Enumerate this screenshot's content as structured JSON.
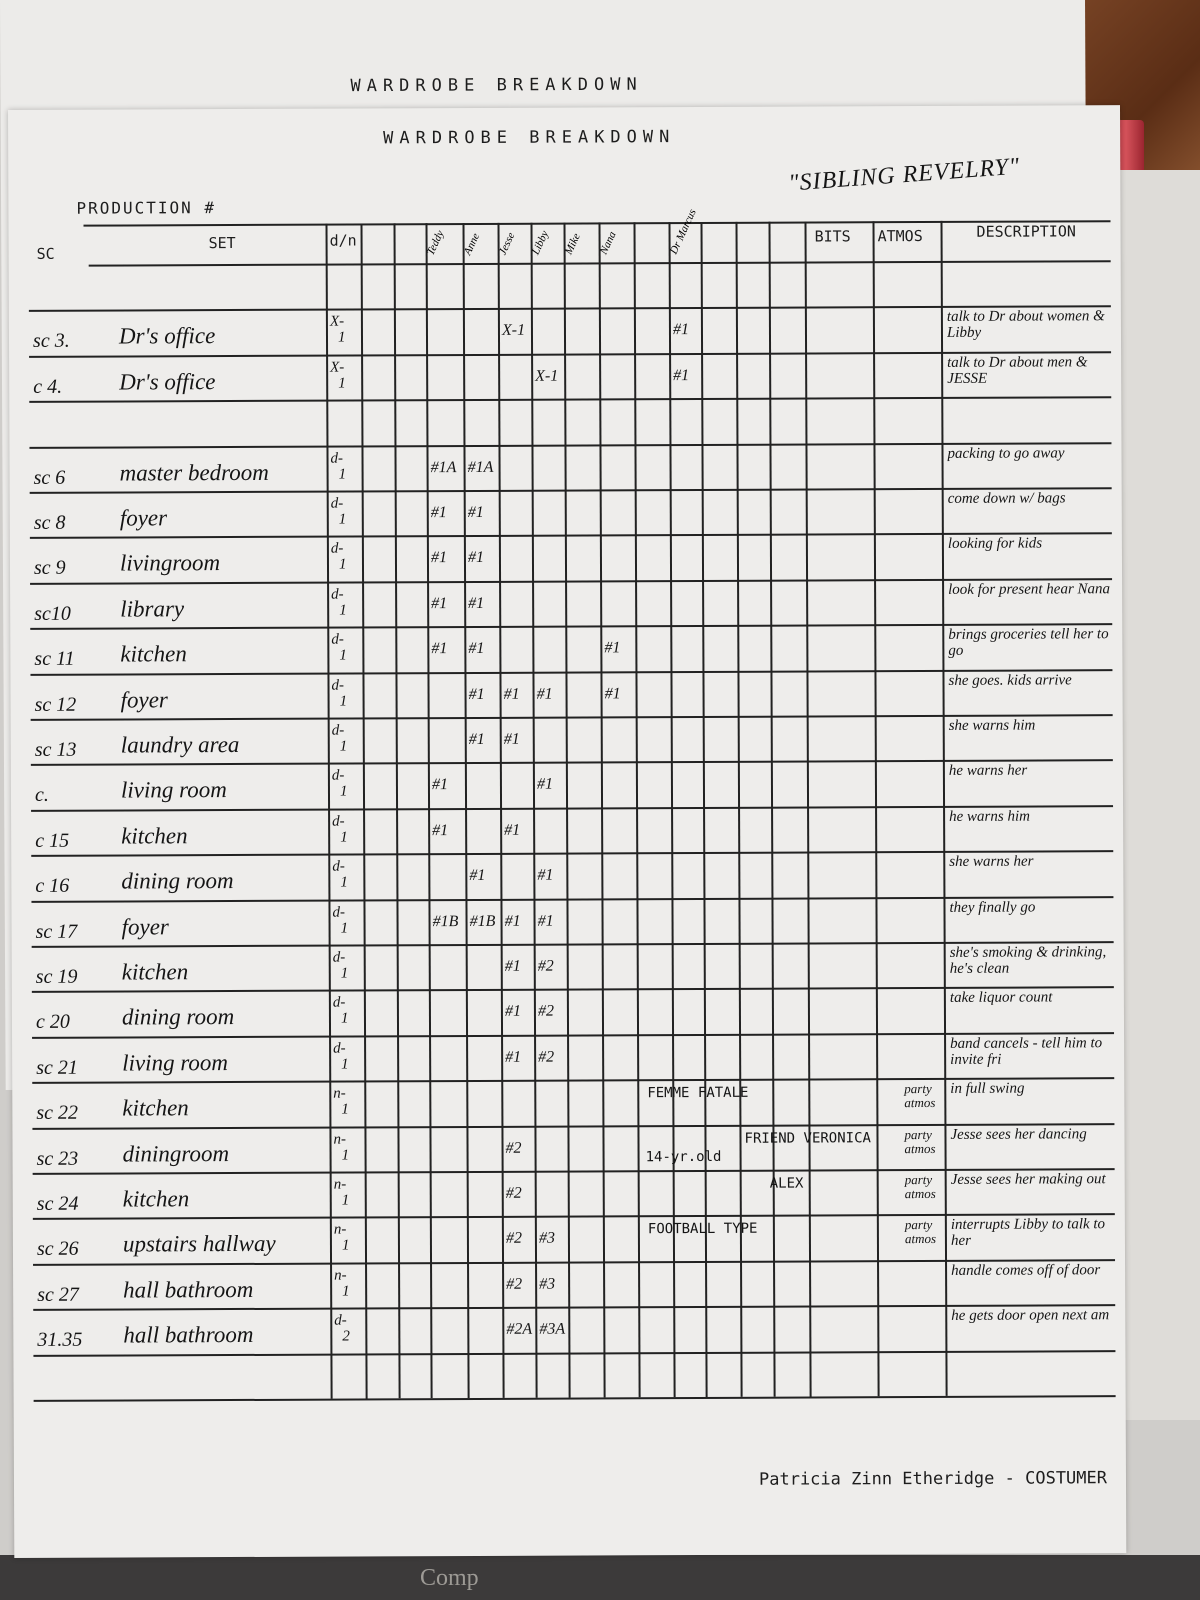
{
  "back_title": "WARDROBE BREAKDOWN",
  "title": "WARDROBE BREAKDOWN",
  "production_label": "PRODUCTION #",
  "production_name": "\"SIBLING REVELRY\"",
  "headers": {
    "sc": "SC",
    "set": "SET",
    "dn": "d/n",
    "bits": "BITS",
    "atmos": "ATMOS",
    "description": "DESCRIPTION"
  },
  "characters": [
    "",
    "Teddy",
    "Anne",
    "Jesse",
    "Libby",
    "Mike",
    "Nana",
    "",
    "Dr Marcus",
    "",
    "",
    "",
    ""
  ],
  "rows": [
    {},
    {
      "sc": "sc 3.",
      "set": "Dr's office",
      "dn": "X-1",
      "marks": {
        "3": "X-1",
        "8": "#1"
      },
      "description": "talk to Dr about women & Libby"
    },
    {
      "sc": "c 4.",
      "set": "Dr's office",
      "dn": "X-1",
      "marks": {
        "4": "X-1",
        "8": "#1"
      },
      "description": "talk to Dr about men & JESSE"
    },
    {},
    {
      "sc": "sc 6",
      "set": "master bedroom",
      "dn": "d-1",
      "marks": {
        "1": "#1A",
        "2": "#1A"
      },
      "description": "packing to go away"
    },
    {
      "sc": "sc 8",
      "set": "foyer",
      "dn": "d-1",
      "marks": {
        "1": "#1",
        "2": "#1"
      },
      "description": "come down w/ bags"
    },
    {
      "sc": "sc 9",
      "set": "livingroom",
      "dn": "d-1",
      "marks": {
        "1": "#1",
        "2": "#1"
      },
      "description": "looking for kids"
    },
    {
      "sc": "sc10",
      "set": "library",
      "dn": "d-1",
      "marks": {
        "1": "#1",
        "2": "#1"
      },
      "description": "look for present hear Nana"
    },
    {
      "sc": "sc 11",
      "set": "kitchen",
      "dn": "d-1",
      "marks": {
        "1": "#1",
        "2": "#1",
        "6": "#1"
      },
      "description": "brings groceries tell her to go"
    },
    {
      "sc": "sc 12",
      "set": "foyer",
      "dn": "d-1",
      "marks": {
        "2": "#1",
        "3": "#1",
        "4": "#1",
        "6": "#1"
      },
      "description": "she goes. kids arrive"
    },
    {
      "sc": "sc 13",
      "set": "laundry area",
      "dn": "d-1",
      "marks": {
        "2": "#1",
        "3": "#1"
      },
      "description": "she warns him"
    },
    {
      "sc": "c.",
      "set": "living room",
      "dn": "d-1",
      "marks": {
        "1": "#1",
        "4": "#1"
      },
      "description": "he warns her"
    },
    {
      "sc": "c 15",
      "set": "kitchen",
      "dn": "d-1",
      "marks": {
        "1": "#1",
        "3": "#1"
      },
      "description": "he warns him"
    },
    {
      "sc": "c 16",
      "set": "dining room",
      "dn": "d-1",
      "marks": {
        "2": "#1",
        "4": "#1"
      },
      "description": "she warns her"
    },
    {
      "sc": "sc 17",
      "set": "foyer",
      "dn": "d-1",
      "marks": {
        "1": "#1B",
        "2": "#1B",
        "3": "#1",
        "4": "#1"
      },
      "description": "they finally go"
    },
    {
      "sc": "sc 19",
      "set": "kitchen",
      "dn": "d-1",
      "marks": {
        "3": "#1",
        "4": "#2"
      },
      "description": "she's smoking & drinking, he's clean"
    },
    {
      "sc": "c 20",
      "set": "dining room",
      "dn": "d-1",
      "marks": {
        "3": "#1",
        "4": "#2"
      },
      "description": "take liquor count"
    },
    {
      "sc": "sc 21",
      "set": "living room",
      "dn": "d-1",
      "marks": {
        "3": "#1",
        "4": "#2"
      },
      "description": "band cancels - tell him to invite fri"
    },
    {
      "sc": "sc 22",
      "set": "kitchen",
      "dn": "n-1",
      "marks": {},
      "bits": [
        "FEMME FATALE"
      ],
      "atmos": "party atmos",
      "description": "in full swing"
    },
    {
      "sc": "sc 23",
      "set": "diningroom",
      "dn": "n-1",
      "marks": {
        "3": "#2"
      },
      "bits": [
        "FRIEND VERONICA",
        "14-yr.old"
      ],
      "atmos": "party atmos",
      "description": "Jesse sees her dancing"
    },
    {
      "sc": "sc 24",
      "set": "kitchen",
      "dn": "n-1",
      "marks": {
        "3": "#2"
      },
      "bits": [
        "ALEX"
      ],
      "atmos": "party atmos",
      "description": "Jesse sees her making out"
    },
    {
      "sc": "sc 26",
      "set": "upstairs hallway",
      "dn": "n-1",
      "marks": {
        "3": "#2",
        "4": "#3"
      },
      "bits": [
        "FOOTBALL TYPE"
      ],
      "atmos": "party atmos",
      "description": "interrupts Libby to talk to her"
    },
    {
      "sc": "sc 27",
      "set": "hall bathroom",
      "dn": "n-1",
      "marks": {
        "3": "#2",
        "4": "#3"
      },
      "description": "handle comes off of door"
    },
    {
      "sc": "31.35",
      "set": "hall bathroom",
      "dn": "d-2",
      "marks": {
        "3": "#2A",
        "4": "#3A"
      },
      "description": "he gets door open next am"
    },
    {}
  ],
  "footer": "Patricia Zinn Etheridge - COSTUMER",
  "under_page_text": "Comp"
}
